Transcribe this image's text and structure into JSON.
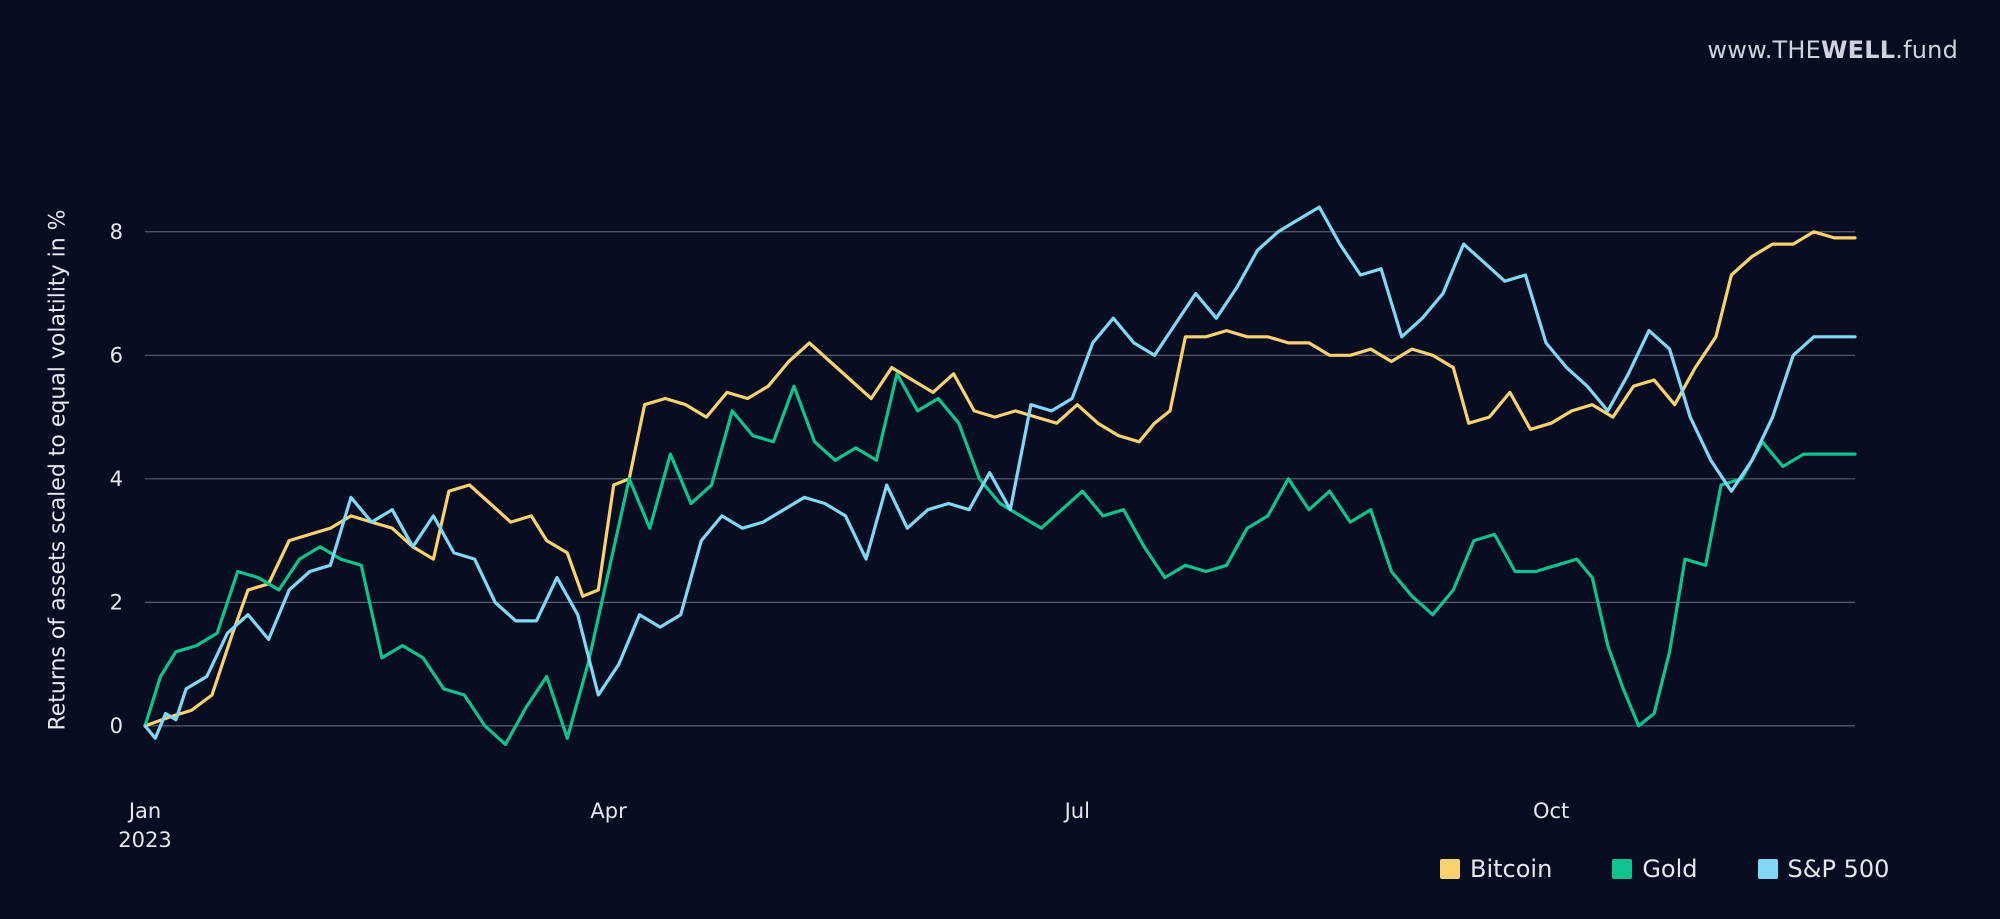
{
  "watermark": {
    "prefix": "www.THE",
    "bold": "WELL",
    "suffix": ".fund"
  },
  "legend": [
    {
      "label": "Bitcoin",
      "color": "#f9d171"
    },
    {
      "label": "Gold",
      "color": "#10c28e"
    },
    {
      "label": "S&P 500",
      "color": "#80d8f5"
    }
  ],
  "chart_data": {
    "type": "line",
    "title": "",
    "xlabel": "",
    "ylabel": "Returns of assets scaled to equal volatility in %",
    "ylim": [
      -1.2,
      9.0
    ],
    "yticks": [
      0,
      2,
      4,
      6,
      8
    ],
    "xlim": [
      "2023-01-01",
      "2023-11-29"
    ],
    "xticks": [
      {
        "date": "2023-01-01",
        "label": "Jan",
        "sublabel": "2023"
      },
      {
        "date": "2023-04-01",
        "label": "Apr",
        "sublabel": ""
      },
      {
        "date": "2023-07-01",
        "label": "Jul",
        "sublabel": ""
      },
      {
        "date": "2023-10-01",
        "label": "Oct",
        "sublabel": ""
      }
    ],
    "grid": "horizontal",
    "legend_position": "bottom-right",
    "series": [
      {
        "name": "Bitcoin",
        "color": "#f9d171",
        "points": [
          [
            "2023-01-01",
            0.0
          ],
          [
            "2023-01-06",
            0.15
          ],
          [
            "2023-01-10",
            0.25
          ],
          [
            "2023-01-14",
            0.5
          ],
          [
            "2023-01-18",
            1.5
          ],
          [
            "2023-01-21",
            2.2
          ],
          [
            "2023-01-25",
            2.3
          ],
          [
            "2023-01-29",
            3.0
          ],
          [
            "2023-02-02",
            3.1
          ],
          [
            "2023-02-06",
            3.2
          ],
          [
            "2023-02-10",
            3.4
          ],
          [
            "2023-02-14",
            3.3
          ],
          [
            "2023-02-18",
            3.2
          ],
          [
            "2023-02-22",
            2.9
          ],
          [
            "2023-02-26",
            2.7
          ],
          [
            "2023-03-01",
            3.8
          ],
          [
            "2023-03-05",
            3.9
          ],
          [
            "2023-03-09",
            3.6
          ],
          [
            "2023-03-13",
            3.3
          ],
          [
            "2023-03-17",
            3.4
          ],
          [
            "2023-03-20",
            3.0
          ],
          [
            "2023-03-24",
            2.8
          ],
          [
            "2023-03-27",
            2.1
          ],
          [
            "2023-03-30",
            2.2
          ],
          [
            "2023-04-02",
            3.9
          ],
          [
            "2023-04-05",
            4.0
          ],
          [
            "2023-04-08",
            5.2
          ],
          [
            "2023-04-12",
            5.3
          ],
          [
            "2023-04-16",
            5.2
          ],
          [
            "2023-04-20",
            5.0
          ],
          [
            "2023-04-24",
            5.4
          ],
          [
            "2023-04-28",
            5.3
          ],
          [
            "2023-05-02",
            5.5
          ],
          [
            "2023-05-06",
            5.9
          ],
          [
            "2023-05-10",
            6.2
          ],
          [
            "2023-05-14",
            5.9
          ],
          [
            "2023-05-18",
            5.6
          ],
          [
            "2023-05-22",
            5.3
          ],
          [
            "2023-05-26",
            5.8
          ],
          [
            "2023-05-30",
            5.6
          ],
          [
            "2023-06-03",
            5.4
          ],
          [
            "2023-06-07",
            5.7
          ],
          [
            "2023-06-11",
            5.1
          ],
          [
            "2023-06-15",
            5.0
          ],
          [
            "2023-06-19",
            5.1
          ],
          [
            "2023-06-23",
            5.0
          ],
          [
            "2023-06-27",
            4.9
          ],
          [
            "2023-07-01",
            5.2
          ],
          [
            "2023-07-05",
            4.9
          ],
          [
            "2023-07-09",
            4.7
          ],
          [
            "2023-07-13",
            4.6
          ],
          [
            "2023-07-16",
            4.9
          ],
          [
            "2023-07-19",
            5.1
          ],
          [
            "2023-07-22",
            6.3
          ],
          [
            "2023-07-26",
            6.3
          ],
          [
            "2023-07-30",
            6.4
          ],
          [
            "2023-08-03",
            6.3
          ],
          [
            "2023-08-07",
            6.3
          ],
          [
            "2023-08-11",
            6.2
          ],
          [
            "2023-08-15",
            6.2
          ],
          [
            "2023-08-19",
            6.0
          ],
          [
            "2023-08-23",
            6.0
          ],
          [
            "2023-08-27",
            6.1
          ],
          [
            "2023-08-31",
            5.9
          ],
          [
            "2023-09-04",
            6.1
          ],
          [
            "2023-09-08",
            6.0
          ],
          [
            "2023-09-12",
            5.8
          ],
          [
            "2023-09-15",
            4.9
          ],
          [
            "2023-09-19",
            5.0
          ],
          [
            "2023-09-23",
            5.4
          ],
          [
            "2023-09-27",
            4.8
          ],
          [
            "2023-10-01",
            4.9
          ],
          [
            "2023-10-05",
            5.1
          ],
          [
            "2023-10-09",
            5.2
          ],
          [
            "2023-10-13",
            5.0
          ],
          [
            "2023-10-17",
            5.5
          ],
          [
            "2023-10-21",
            5.6
          ],
          [
            "2023-10-25",
            5.2
          ],
          [
            "2023-10-29",
            5.8
          ],
          [
            "2023-11-02",
            6.3
          ],
          [
            "2023-11-05",
            7.3
          ],
          [
            "2023-11-09",
            7.6
          ],
          [
            "2023-11-13",
            7.8
          ],
          [
            "2023-11-17",
            7.8
          ],
          [
            "2023-11-21",
            8.0
          ],
          [
            "2023-11-25",
            7.9
          ],
          [
            "2023-11-29",
            7.9
          ]
        ]
      },
      {
        "name": "Gold",
        "color": "#10c28e",
        "points": [
          [
            "2023-01-01",
            0.0
          ],
          [
            "2023-01-04",
            0.8
          ],
          [
            "2023-01-07",
            1.2
          ],
          [
            "2023-01-11",
            1.3
          ],
          [
            "2023-01-15",
            1.5
          ],
          [
            "2023-01-19",
            2.5
          ],
          [
            "2023-01-23",
            2.4
          ],
          [
            "2023-01-27",
            2.2
          ],
          [
            "2023-01-31",
            2.7
          ],
          [
            "2023-02-04",
            2.9
          ],
          [
            "2023-02-08",
            2.7
          ],
          [
            "2023-02-12",
            2.6
          ],
          [
            "2023-02-16",
            1.1
          ],
          [
            "2023-02-20",
            1.3
          ],
          [
            "2023-02-24",
            1.1
          ],
          [
            "2023-02-28",
            0.6
          ],
          [
            "2023-03-04",
            0.5
          ],
          [
            "2023-03-08",
            0.0
          ],
          [
            "2023-03-12",
            -0.3
          ],
          [
            "2023-03-16",
            0.3
          ],
          [
            "2023-03-20",
            0.8
          ],
          [
            "2023-03-24",
            -0.2
          ],
          [
            "2023-03-28",
            1.0
          ],
          [
            "2023-04-01",
            2.5
          ],
          [
            "2023-04-05",
            4.0
          ],
          [
            "2023-04-09",
            3.2
          ],
          [
            "2023-04-13",
            4.4
          ],
          [
            "2023-04-17",
            3.6
          ],
          [
            "2023-04-21",
            3.9
          ],
          [
            "2023-04-25",
            5.1
          ],
          [
            "2023-04-29",
            4.7
          ],
          [
            "2023-05-03",
            4.6
          ],
          [
            "2023-05-07",
            5.5
          ],
          [
            "2023-05-11",
            4.6
          ],
          [
            "2023-05-15",
            4.3
          ],
          [
            "2023-05-19",
            4.5
          ],
          [
            "2023-05-23",
            4.3
          ],
          [
            "2023-05-27",
            5.7
          ],
          [
            "2023-05-31",
            5.1
          ],
          [
            "2023-06-04",
            5.3
          ],
          [
            "2023-06-08",
            4.9
          ],
          [
            "2023-06-12",
            4.0
          ],
          [
            "2023-06-16",
            3.6
          ],
          [
            "2023-06-20",
            3.4
          ],
          [
            "2023-06-24",
            3.2
          ],
          [
            "2023-06-28",
            3.5
          ],
          [
            "2023-07-02",
            3.8
          ],
          [
            "2023-07-06",
            3.4
          ],
          [
            "2023-07-10",
            3.5
          ],
          [
            "2023-07-14",
            2.9
          ],
          [
            "2023-07-18",
            2.4
          ],
          [
            "2023-07-22",
            2.6
          ],
          [
            "2023-07-26",
            2.5
          ],
          [
            "2023-07-30",
            2.6
          ],
          [
            "2023-08-03",
            3.2
          ],
          [
            "2023-08-07",
            3.4
          ],
          [
            "2023-08-11",
            4.0
          ],
          [
            "2023-08-15",
            3.5
          ],
          [
            "2023-08-19",
            3.8
          ],
          [
            "2023-08-23",
            3.3
          ],
          [
            "2023-08-27",
            3.5
          ],
          [
            "2023-08-31",
            2.5
          ],
          [
            "2023-09-04",
            2.1
          ],
          [
            "2023-09-08",
            1.8
          ],
          [
            "2023-09-12",
            2.2
          ],
          [
            "2023-09-16",
            3.0
          ],
          [
            "2023-09-20",
            3.1
          ],
          [
            "2023-09-24",
            2.5
          ],
          [
            "2023-09-28",
            2.5
          ],
          [
            "2023-10-02",
            2.6
          ],
          [
            "2023-10-06",
            2.7
          ],
          [
            "2023-10-09",
            2.4
          ],
          [
            "2023-10-12",
            1.3
          ],
          [
            "2023-10-15",
            0.6
          ],
          [
            "2023-10-18",
            0.0
          ],
          [
            "2023-10-21",
            0.2
          ],
          [
            "2023-10-24",
            1.2
          ],
          [
            "2023-10-27",
            2.7
          ],
          [
            "2023-10-31",
            2.6
          ],
          [
            "2023-11-03",
            3.9
          ],
          [
            "2023-11-07",
            4.0
          ],
          [
            "2023-11-11",
            4.6
          ],
          [
            "2023-11-15",
            4.2
          ],
          [
            "2023-11-19",
            4.4
          ],
          [
            "2023-11-23",
            4.4
          ],
          [
            "2023-11-29",
            4.4
          ]
        ]
      },
      {
        "name": "S&P 500",
        "color": "#80d8f5",
        "points": [
          [
            "2023-01-01",
            0.0
          ],
          [
            "2023-01-03",
            -0.2
          ],
          [
            "2023-01-05",
            0.2
          ],
          [
            "2023-01-07",
            0.1
          ],
          [
            "2023-01-09",
            0.6
          ],
          [
            "2023-01-13",
            0.8
          ],
          [
            "2023-01-17",
            1.5
          ],
          [
            "2023-01-21",
            1.8
          ],
          [
            "2023-01-25",
            1.4
          ],
          [
            "2023-01-29",
            2.2
          ],
          [
            "2023-02-02",
            2.5
          ],
          [
            "2023-02-06",
            2.6
          ],
          [
            "2023-02-10",
            3.7
          ],
          [
            "2023-02-14",
            3.3
          ],
          [
            "2023-02-18",
            3.5
          ],
          [
            "2023-02-22",
            2.9
          ],
          [
            "2023-02-26",
            3.4
          ],
          [
            "2023-03-02",
            2.8
          ],
          [
            "2023-03-06",
            2.7
          ],
          [
            "2023-03-10",
            2.0
          ],
          [
            "2023-03-14",
            1.7
          ],
          [
            "2023-03-18",
            1.7
          ],
          [
            "2023-03-22",
            2.4
          ],
          [
            "2023-03-26",
            1.8
          ],
          [
            "2023-03-30",
            0.5
          ],
          [
            "2023-04-03",
            1.0
          ],
          [
            "2023-04-07",
            1.8
          ],
          [
            "2023-04-11",
            1.6
          ],
          [
            "2023-04-15",
            1.8
          ],
          [
            "2023-04-19",
            3.0
          ],
          [
            "2023-04-23",
            3.4
          ],
          [
            "2023-04-27",
            3.2
          ],
          [
            "2023-05-01",
            3.3
          ],
          [
            "2023-05-05",
            3.5
          ],
          [
            "2023-05-09",
            3.7
          ],
          [
            "2023-05-13",
            3.6
          ],
          [
            "2023-05-17",
            3.4
          ],
          [
            "2023-05-21",
            2.7
          ],
          [
            "2023-05-25",
            3.9
          ],
          [
            "2023-05-29",
            3.2
          ],
          [
            "2023-06-02",
            3.5
          ],
          [
            "2023-06-06",
            3.6
          ],
          [
            "2023-06-10",
            3.5
          ],
          [
            "2023-06-14",
            4.1
          ],
          [
            "2023-06-18",
            3.5
          ],
          [
            "2023-06-22",
            5.2
          ],
          [
            "2023-06-26",
            5.1
          ],
          [
            "2023-06-30",
            5.3
          ],
          [
            "2023-07-04",
            6.2
          ],
          [
            "2023-07-08",
            6.6
          ],
          [
            "2023-07-12",
            6.2
          ],
          [
            "2023-07-16",
            6.0
          ],
          [
            "2023-07-20",
            6.5
          ],
          [
            "2023-07-24",
            7.0
          ],
          [
            "2023-07-28",
            6.6
          ],
          [
            "2023-08-01",
            7.1
          ],
          [
            "2023-08-05",
            7.7
          ],
          [
            "2023-08-09",
            8.0
          ],
          [
            "2023-08-13",
            8.2
          ],
          [
            "2023-08-17",
            8.4
          ],
          [
            "2023-08-21",
            7.8
          ],
          [
            "2023-08-25",
            7.3
          ],
          [
            "2023-08-29",
            7.4
          ],
          [
            "2023-09-02",
            6.3
          ],
          [
            "2023-09-06",
            6.6
          ],
          [
            "2023-09-10",
            7.0
          ],
          [
            "2023-09-14",
            7.8
          ],
          [
            "2023-09-18",
            7.5
          ],
          [
            "2023-09-22",
            7.2
          ],
          [
            "2023-09-26",
            7.3
          ],
          [
            "2023-09-30",
            6.2
          ],
          [
            "2023-10-04",
            5.8
          ],
          [
            "2023-10-08",
            5.5
          ],
          [
            "2023-10-12",
            5.1
          ],
          [
            "2023-10-16",
            5.7
          ],
          [
            "2023-10-20",
            6.4
          ],
          [
            "2023-10-24",
            6.1
          ],
          [
            "2023-10-28",
            5.0
          ],
          [
            "2023-11-01",
            4.3
          ],
          [
            "2023-11-05",
            3.8
          ],
          [
            "2023-11-09",
            4.3
          ],
          [
            "2023-11-13",
            5.0
          ],
          [
            "2023-11-17",
            6.0
          ],
          [
            "2023-11-21",
            6.3
          ],
          [
            "2023-11-29",
            6.3
          ]
        ]
      }
    ]
  }
}
